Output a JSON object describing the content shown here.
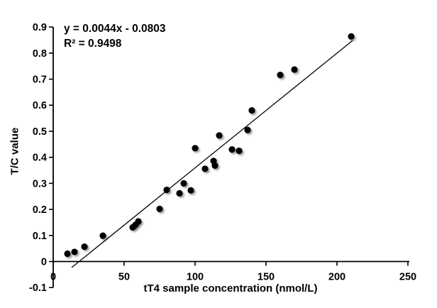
{
  "figure": {
    "equation_line1": "y = 0.0044x - 0.0803",
    "equation_line2": "R² = 0.9498"
  },
  "chart_data": {
    "type": "scatter",
    "title": "",
    "xlabel": "tT4 sample concentration (nmol/L)",
    "ylabel": "T/C value",
    "xlim": [
      0,
      250
    ],
    "ylim": [
      -0.1,
      0.9
    ],
    "xticks": [
      0,
      50,
      100,
      150,
      200,
      250
    ],
    "xtick_labels": [
      "0",
      "50",
      "100",
      "150",
      "200",
      "250"
    ],
    "yticks": [
      -0.1,
      0,
      0.1,
      0.2,
      0.3,
      0.4,
      0.5,
      0.6,
      0.7,
      0.8,
      0.9
    ],
    "ytick_labels": [
      "-0.1",
      "0",
      "0.1",
      "0.2",
      "0.3",
      "0.4",
      "0.5",
      "0.6",
      "0.7",
      "0.8",
      "0.9"
    ],
    "grid": false,
    "legend": "none",
    "marker_color": "#000000",
    "axis_color": "#000000",
    "points": [
      [
        10,
        0.03
      ],
      [
        15,
        0.037
      ],
      [
        22,
        0.057
      ],
      [
        35,
        0.099
      ],
      [
        56,
        0.131
      ],
      [
        58,
        0.141
      ],
      [
        60,
        0.154
      ],
      [
        75,
        0.202
      ],
      [
        80,
        0.275
      ],
      [
        89,
        0.262
      ],
      [
        92,
        0.3
      ],
      [
        97,
        0.273
      ],
      [
        100,
        0.435
      ],
      [
        107,
        0.356
      ],
      [
        113,
        0.386
      ],
      [
        114,
        0.368
      ],
      [
        117,
        0.484
      ],
      [
        126,
        0.43
      ],
      [
        131,
        0.425
      ],
      [
        137,
        0.505
      ],
      [
        140,
        0.58
      ],
      [
        160,
        0.716
      ],
      [
        170,
        0.737
      ],
      [
        210,
        0.864
      ]
    ],
    "trendline": {
      "slope": 0.0044,
      "intercept": -0.0803,
      "x_start": 13,
      "x_end": 211,
      "equation": "y = 0.0044x - 0.0803",
      "r_squared": 0.9498
    }
  }
}
